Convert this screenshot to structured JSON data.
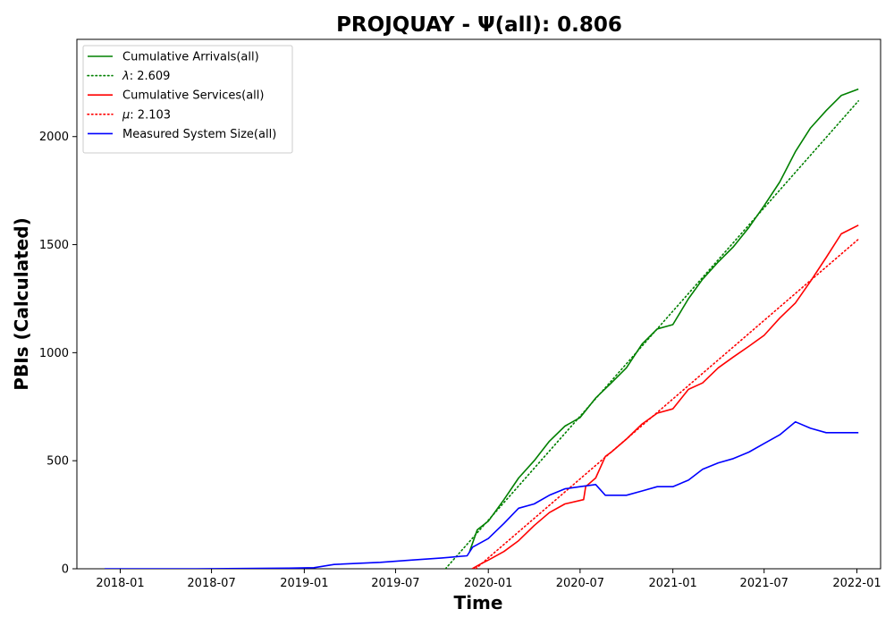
{
  "chart_data": {
    "type": "line",
    "title": "PROJQUAY -  Ψ(all): 0.806",
    "xlabel": "Time",
    "ylabel": "PBIs (Calculated)",
    "xlim": [
      "2017-10-07",
      "2022-02-17"
    ],
    "ylim": [
      0,
      2450
    ],
    "x_ticks": [
      "2018-01",
      "2018-07",
      "2019-01",
      "2019-07",
      "2020-01",
      "2020-07",
      "2021-01",
      "2021-07",
      "2022-01"
    ],
    "y_ticks": [
      0,
      500,
      1000,
      1500,
      2000
    ],
    "legend": "top-left",
    "grid": false,
    "series": [
      {
        "name": "Cumulative Arrivals(all)",
        "color": "#008000",
        "style": "solid",
        "points": [
          [
            "2019-11-25",
            80
          ],
          [
            "2019-12-10",
            180
          ],
          [
            "2020-01-01",
            220
          ],
          [
            "2020-02-01",
            320
          ],
          [
            "2020-03-01",
            420
          ],
          [
            "2020-04-01",
            500
          ],
          [
            "2020-05-01",
            590
          ],
          [
            "2020-06-01",
            660
          ],
          [
            "2020-07-01",
            700
          ],
          [
            "2020-08-01",
            790
          ],
          [
            "2020-09-01",
            860
          ],
          [
            "2020-10-01",
            930
          ],
          [
            "2020-11-01",
            1040
          ],
          [
            "2020-12-01",
            1110
          ],
          [
            "2021-01-01",
            1130
          ],
          [
            "2021-02-01",
            1250
          ],
          [
            "2021-03-01",
            1340
          ],
          [
            "2021-04-01",
            1420
          ],
          [
            "2021-05-01",
            1490
          ],
          [
            "2021-06-01",
            1580
          ],
          [
            "2021-07-01",
            1680
          ],
          [
            "2021-08-01",
            1790
          ],
          [
            "2021-09-01",
            1930
          ],
          [
            "2021-10-01",
            2040
          ],
          [
            "2021-11-01",
            2120
          ],
          [
            "2021-12-01",
            2190
          ],
          [
            "2022-01-04",
            2220
          ]
        ]
      },
      {
        "name": "λ: 2.609",
        "label_symbol": "λ",
        "label_value": ": 2.609",
        "color": "#008000",
        "style": "dotted",
        "points": [
          [
            "2019-10-08",
            0
          ],
          [
            "2022-01-04",
            2165
          ]
        ]
      },
      {
        "name": "Cumulative Services(all)",
        "color": "#ff0000",
        "style": "solid",
        "points": [
          [
            "2019-11-30",
            0
          ],
          [
            "2019-12-15",
            20
          ],
          [
            "2020-01-01",
            40
          ],
          [
            "2020-02-01",
            80
          ],
          [
            "2020-03-01",
            130
          ],
          [
            "2020-04-01",
            200
          ],
          [
            "2020-05-01",
            260
          ],
          [
            "2020-06-01",
            300
          ],
          [
            "2020-07-08",
            320
          ],
          [
            "2020-07-12",
            380
          ],
          [
            "2020-08-01",
            420
          ],
          [
            "2020-08-20",
            520
          ],
          [
            "2020-09-01",
            540
          ],
          [
            "2020-10-01",
            600
          ],
          [
            "2020-11-01",
            670
          ],
          [
            "2020-12-01",
            720
          ],
          [
            "2021-01-01",
            740
          ],
          [
            "2021-02-01",
            830
          ],
          [
            "2021-03-01",
            860
          ],
          [
            "2021-04-01",
            930
          ],
          [
            "2021-05-01",
            980
          ],
          [
            "2021-06-01",
            1030
          ],
          [
            "2021-07-01",
            1080
          ],
          [
            "2021-08-01",
            1160
          ],
          [
            "2021-09-01",
            1230
          ],
          [
            "2021-10-01",
            1330
          ],
          [
            "2021-11-01",
            1440
          ],
          [
            "2021-12-01",
            1550
          ],
          [
            "2022-01-04",
            1590
          ]
        ]
      },
      {
        "name": "μ: 2.103",
        "label_symbol": "μ",
        "label_value": ": 2.103",
        "color": "#ff0000",
        "style": "dotted",
        "points": [
          [
            "2019-12-07",
            0
          ],
          [
            "2022-01-04",
            1525
          ]
        ]
      },
      {
        "name": "Measured System Size(all)",
        "color": "#0000ff",
        "style": "solid",
        "points": [
          [
            "2017-12-01",
            0
          ],
          [
            "2018-06-01",
            0
          ],
          [
            "2018-12-01",
            3
          ],
          [
            "2019-01-20",
            5
          ],
          [
            "2019-03-01",
            20
          ],
          [
            "2019-06-01",
            30
          ],
          [
            "2019-08-01",
            40
          ],
          [
            "2019-10-01",
            50
          ],
          [
            "2019-11-20",
            60
          ],
          [
            "2019-12-01",
            100
          ],
          [
            "2020-01-01",
            140
          ],
          [
            "2020-02-01",
            210
          ],
          [
            "2020-03-01",
            280
          ],
          [
            "2020-04-01",
            300
          ],
          [
            "2020-05-01",
            340
          ],
          [
            "2020-06-01",
            370
          ],
          [
            "2020-07-01",
            380
          ],
          [
            "2020-08-01",
            390
          ],
          [
            "2020-08-20",
            340
          ],
          [
            "2020-09-01",
            340
          ],
          [
            "2020-10-01",
            340
          ],
          [
            "2020-11-01",
            360
          ],
          [
            "2020-12-01",
            380
          ],
          [
            "2021-01-01",
            380
          ],
          [
            "2021-02-01",
            410
          ],
          [
            "2021-03-01",
            460
          ],
          [
            "2021-04-01",
            490
          ],
          [
            "2021-05-01",
            510
          ],
          [
            "2021-06-01",
            540
          ],
          [
            "2021-07-01",
            580
          ],
          [
            "2021-08-01",
            620
          ],
          [
            "2021-09-01",
            680
          ],
          [
            "2021-10-01",
            650
          ],
          [
            "2021-11-01",
            630
          ],
          [
            "2021-12-01",
            630
          ],
          [
            "2022-01-04",
            630
          ]
        ]
      }
    ]
  }
}
